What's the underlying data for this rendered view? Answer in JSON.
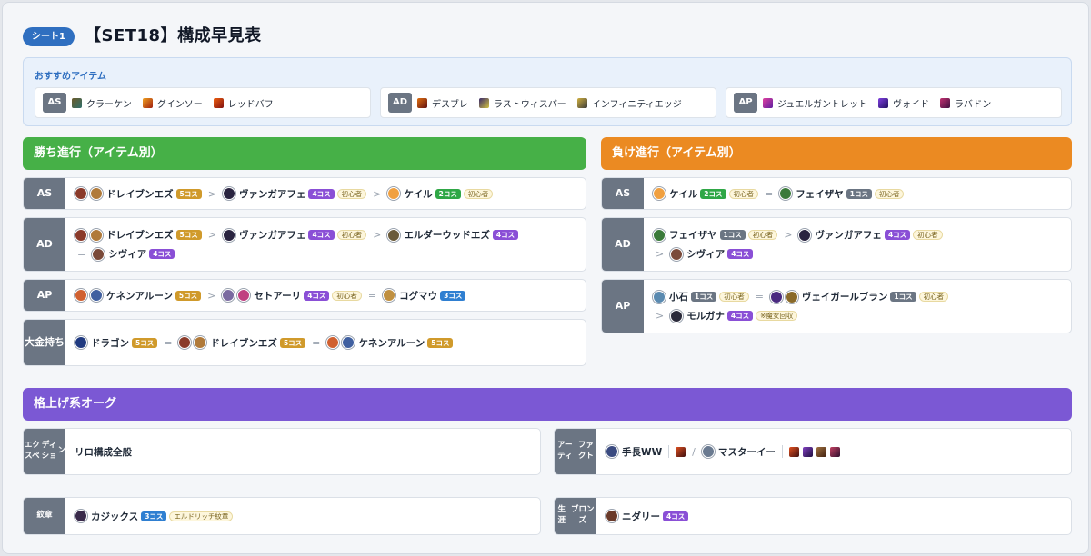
{
  "header": {
    "sheet_tag": "シート1",
    "title": "【SET18】構成早見表"
  },
  "recommended": {
    "heading": "おすすめアイテム",
    "groups": [
      {
        "tag": "AS",
        "items": [
          "クラーケン",
          "グインソー",
          "レッドバフ"
        ]
      },
      {
        "tag": "AD",
        "items": [
          "デスブレ",
          "ラストウィスパー",
          "インフィニティエッジ"
        ]
      },
      {
        "tag": "AP",
        "items": [
          "ジュエルガントレット",
          "ヴォイド",
          "ラバドン"
        ]
      }
    ]
  },
  "win": {
    "title": "勝ち進行（アイテム別）",
    "rows": {
      "as": {
        "label": "AS",
        "u1": "ドレイブンエズ",
        "c1": "5コス",
        "u2": "ヴァンガアフェ",
        "c2": "4コス",
        "b2": "初心者",
        "u3": "ケイル",
        "c3": "2コス",
        "b3": "初心者"
      },
      "ad": {
        "label": "AD",
        "u1": "ドレイブンエズ",
        "c1": "5コス",
        "u2": "ヴァンガアフェ",
        "c2": "4コス",
        "b2": "初心者",
        "u3": "エルダーウッドエズ",
        "c3": "4コス",
        "u4": "シヴィア",
        "c4": "4コス"
      },
      "ap": {
        "label": "AP",
        "u1": "ケネンアルーン",
        "c1": "5コス",
        "u2": "セトアーリ",
        "c2": "4コス",
        "b2": "初心者",
        "u3": "コグマウ",
        "c3": "3コス"
      },
      "rich": {
        "label1": "大金",
        "label2": "持ち",
        "u1": "ドラゴン",
        "c1": "5コス",
        "u2": "ドレイブンエズ",
        "c2": "5コス",
        "u3": "ケネンアルーン",
        "c3": "5コス"
      }
    }
  },
  "lose": {
    "title": "負け進行（アイテム別）",
    "rows": {
      "as": {
        "label": "AS",
        "u1": "ケイル",
        "c1": "2コス",
        "b1": "初心者",
        "u2": "フェイザヤ",
        "c2": "1コス",
        "b2": "初心者"
      },
      "ad": {
        "label": "AD",
        "u1": "フェイザヤ",
        "c1": "1コス",
        "b1": "初心者",
        "u2": "ヴァンガアフェ",
        "c2": "4コス",
        "b2": "初心者",
        "u3": "シヴィア",
        "c3": "4コス"
      },
      "ap": {
        "label": "AP",
        "u1": "小石",
        "c1": "1コス",
        "b1": "初心者",
        "u2": "ヴェイガールブラン",
        "c2": "1コス",
        "b2": "初心者",
        "u3": "モルガナ",
        "c3": "4コス",
        "b3": "※魔女回収"
      }
    }
  },
  "augment": {
    "title": "格上げ系オーグ",
    "expedition": {
      "label1": "エクスペ",
      "label2": "ディショ",
      "label3": "ン",
      "text": "リロ構成全般"
    },
    "artifact": {
      "label1": "アーティ",
      "label2": "ファクト",
      "u1": "手長WW",
      "slash": "/",
      "u2": "マスターイー"
    },
    "emblem": {
      "label": "紋章",
      "u1": "カジックス",
      "c1": "3コス",
      "b1": "エルドリッチ紋章"
    },
    "bronze": {
      "label1": "生涯",
      "label2": "ブロンズ",
      "u1": "ニダリー",
      "c1": "4コス"
    }
  },
  "symbols": {
    "arrow": ">",
    "equal": "="
  },
  "colors": {
    "accent_blue": "#2f6fc0",
    "win_green": "#46b047",
    "lose_orange": "#eb8a22",
    "augment_purple": "#7b58d4",
    "label_gray": "#6b7583"
  }
}
